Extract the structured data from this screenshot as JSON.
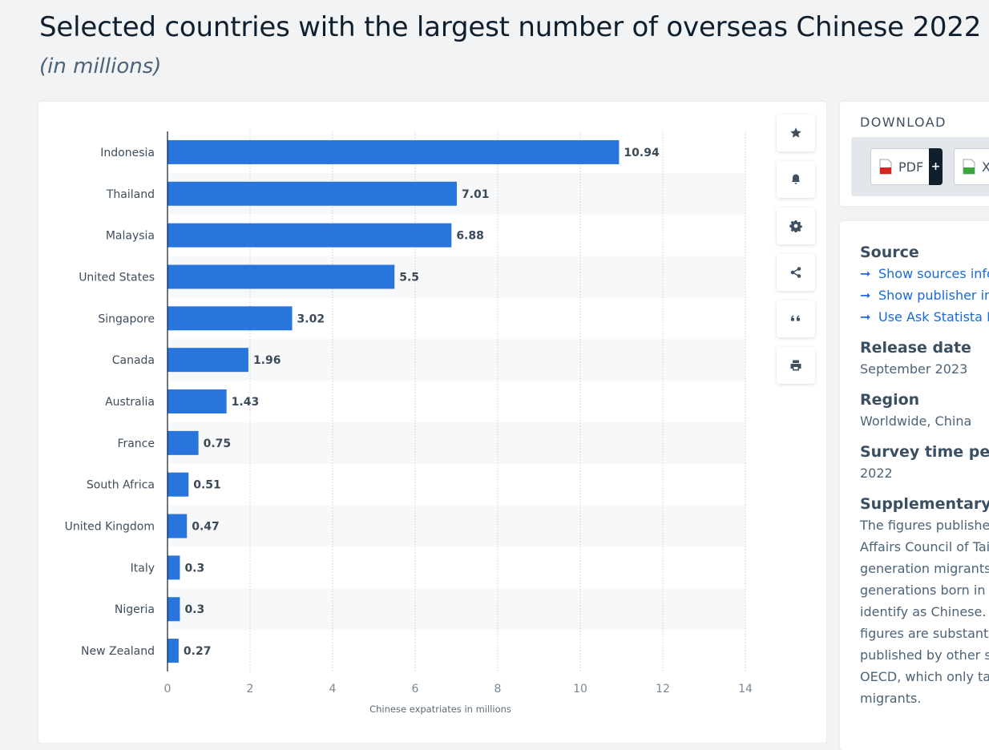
{
  "page": {
    "title": "Selected countries with the largest number of overseas Chinese 2022",
    "subtitle": "(in millions)"
  },
  "chart_data": {
    "type": "bar",
    "orientation": "horizontal",
    "categories": [
      "Indonesia",
      "Thailand",
      "Malaysia",
      "United States",
      "Singapore",
      "Canada",
      "Australia",
      "France",
      "South Africa",
      "United Kingdom",
      "Italy",
      "Nigeria",
      "New Zealand"
    ],
    "values": [
      10.94,
      7.01,
      6.88,
      5.5,
      3.02,
      1.96,
      1.43,
      0.75,
      0.51,
      0.47,
      0.3,
      0.3,
      0.27
    ],
    "value_labels": [
      "10.94",
      "7.01",
      "6.88",
      "5.5",
      "3.02",
      "1.96",
      "1.43",
      "0.75",
      "0.51",
      "0.47",
      "0.3",
      "0.3",
      "0.27"
    ],
    "xlabel": "Chinese expatriates in millions",
    "ylabel": "",
    "xlim": [
      0,
      14
    ],
    "xticks": [
      0,
      2,
      4,
      6,
      8,
      10,
      12,
      14
    ],
    "grid": true,
    "bar_color": "#2876dd"
  },
  "toolbar": {
    "items": [
      {
        "name": "star-icon",
        "label": "favorite"
      },
      {
        "name": "bell-icon",
        "label": "notification"
      },
      {
        "name": "gear-icon",
        "label": "settings"
      },
      {
        "name": "share-icon",
        "label": "share"
      },
      {
        "name": "quote-icon",
        "label": "cite"
      },
      {
        "name": "print-icon",
        "label": "print"
      }
    ]
  },
  "download": {
    "title": "DOWNLOAD",
    "pdf_label": "PDF",
    "plus": "+",
    "xls_label": "X"
  },
  "info": {
    "source_heading": "Source",
    "source_links": [
      "Show sources info",
      "Show publisher in",
      "Use Ask Statista R"
    ],
    "release_heading": "Release date",
    "release_value": "September 2023",
    "region_heading": "Region",
    "region_value": "Worldwide, China",
    "survey_heading": "Survey time perio",
    "survey_value": "2022",
    "supp_heading": "Supplementary n",
    "supp_lines": [
      "The figures publishe",
      "Affairs Council of Tai",
      "generation migrants,",
      "generations born in t",
      "identify as Chinese. C",
      "figures are substanti",
      "published by other s",
      "OECD, which only tal",
      "migrants."
    ]
  }
}
